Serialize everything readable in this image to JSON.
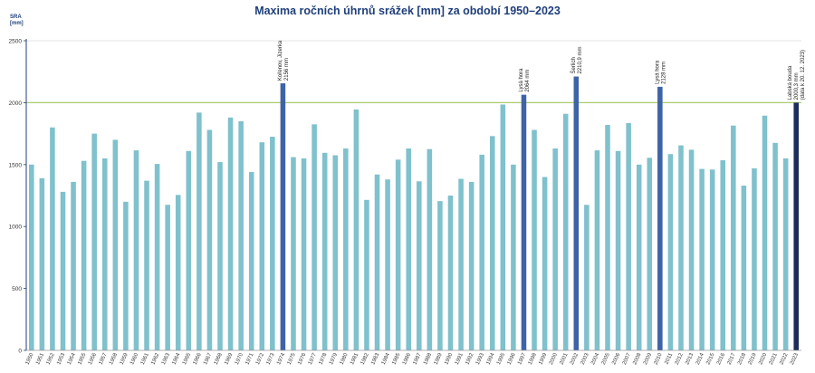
{
  "chart_data": {
    "type": "bar",
    "title": "Maxima ročních úhrnů srážek [mm] za období 1950–2023",
    "ylabel_line1": "SRA",
    "ylabel_line2": "[mm]",
    "xlabel": "",
    "ylim": [
      0,
      2500
    ],
    "yticks": [
      0,
      500,
      1000,
      1500,
      2000,
      2500
    ],
    "reference_line": 2000,
    "grid": false,
    "colors": {
      "bar": "#7fc1cc",
      "highlight": "#3e63a6",
      "last": "#1c2d5a",
      "reference": "#a9cc6e",
      "axis": "#1f3f7a",
      "title": "#1f3f7a"
    },
    "categories": [
      "1950",
      "1951",
      "1952",
      "1953",
      "1954",
      "1955",
      "1956",
      "1957",
      "1958",
      "1959",
      "1960",
      "1961",
      "1962",
      "1963",
      "1964",
      "1965",
      "1966",
      "1967",
      "1968",
      "1969",
      "1970",
      "1971",
      "1972",
      "1973",
      "1974",
      "1975",
      "1976",
      "1977",
      "1978",
      "1979",
      "1980",
      "1981",
      "1982",
      "1983",
      "1984",
      "1985",
      "1986",
      "1987",
      "1988",
      "1989",
      "1990",
      "1991",
      "1992",
      "1993",
      "1994",
      "1995",
      "1996",
      "1997",
      "1998",
      "1999",
      "2000",
      "2001",
      "2002",
      "2003",
      "2004",
      "2005",
      "2006",
      "2007",
      "2008",
      "2009",
      "2010",
      "2011",
      "2012",
      "2013",
      "2014",
      "2015",
      "2016",
      "2017",
      "2018",
      "2019",
      "2020",
      "2021",
      "2022",
      "2023"
    ],
    "values": [
      1500,
      1390,
      1800,
      1280,
      1360,
      1530,
      1750,
      1550,
      1700,
      1200,
      1615,
      1370,
      1505,
      1175,
      1255,
      1610,
      1920,
      1780,
      1520,
      1880,
      1850,
      1440,
      1680,
      1725,
      2156,
      1560,
      1550,
      1825,
      1595,
      1575,
      1630,
      1945,
      1215,
      1420,
      1380,
      1540,
      1630,
      1365,
      1625,
      1205,
      1250,
      1385,
      1360,
      1580,
      1730,
      1985,
      1500,
      2064,
      1780,
      1400,
      1630,
      1910,
      2210.9,
      1175,
      1615,
      1820,
      1610,
      1835,
      1500,
      1555,
      2128,
      1585,
      1655,
      1620,
      1465,
      1460,
      1535,
      1815,
      1330,
      1470,
      1895,
      1675,
      1550,
      2000.3
    ],
    "highlight_years": [
      "1974",
      "1997",
      "2002",
      "2010"
    ],
    "last_year": "2023",
    "annotations": [
      {
        "year": "1974",
        "line1": "Kořenov, Jizerka",
        "line2": "2156 mm"
      },
      {
        "year": "1997",
        "line1": "Lysá hora",
        "line2": "2064 mm"
      },
      {
        "year": "2002",
        "line1": "Šerlich",
        "line2": "2210,9 mm"
      },
      {
        "year": "2010",
        "line1": "Lysá hora",
        "line2": "2128 mm"
      },
      {
        "year": "2023",
        "line1": "Labská bouda",
        "line2": "2000,3 mm",
        "line3": "(data k 20. 12. 2023)"
      }
    ]
  }
}
